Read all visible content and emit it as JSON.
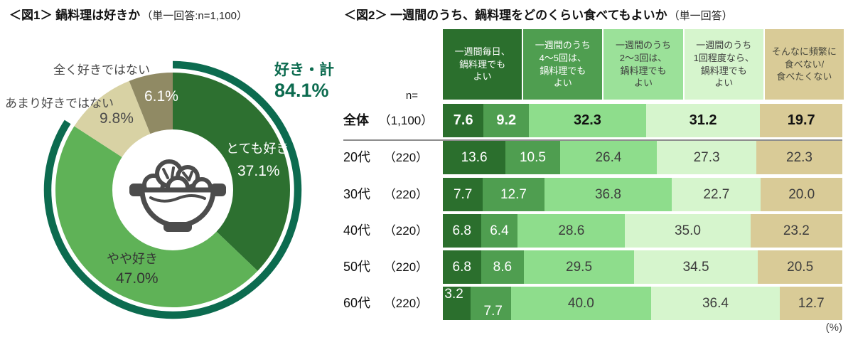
{
  "chart_data": [
    {
      "type": "pie",
      "variant": "donut-with-total-arc",
      "title": "＜図1＞ 鍋料理は好きか",
      "subtitle": "（単一回答:n=1,100）",
      "slices": [
        {
          "label": "とても好き",
          "value": 37.1,
          "display": "37.1%",
          "color": "#2d7030",
          "text_color": "#ffffff"
        },
        {
          "label": "やや好き",
          "value": 47.0,
          "display": "47.0%",
          "color": "#5fb257",
          "text_color": "#333333"
        },
        {
          "label": "あまり好きではない",
          "value": 9.8,
          "display": "9.8%",
          "color": "#d8d2a4",
          "text_color": "#4a4a4a"
        },
        {
          "label": "全く好きではない",
          "value": 6.1,
          "display": "6.1%",
          "color": "#908a64",
          "text_color": "#ffffff"
        }
      ],
      "total_arc": {
        "label": "好き・計",
        "value": 84.1,
        "display": "84.1%",
        "color": "#0c6b4f"
      },
      "center_icon": "hotpot-icon",
      "legend_position": "on-slices",
      "start_angle": "top-clockwise"
    },
    {
      "type": "bar",
      "variant": "stacked-horizontal-100pct",
      "title": "＜図2＞ 一週間のうち、鍋料理をどのくらい食べてもよいか",
      "subtitle": "（単一回答）",
      "n_header": "n=",
      "unit_label": "(%)",
      "xlim": [
        0,
        100
      ],
      "legend": [
        {
          "label": "一週間毎日、\n鍋料理でも\nよい",
          "color": "#2b6f2d",
          "text_color": "#ffffff",
          "bar_color": "#2b6f2d",
          "bar_text": "#ffffff"
        },
        {
          "label": "一週間のうち\n4～5回は、\n鍋料理でも\nよい",
          "color": "#4f9e50",
          "text_color": "#ffffff",
          "bar_color": "#4f9e50",
          "bar_text": "#ffffff"
        },
        {
          "label": "一週間のうち\n2～3回は、\n鍋料理でも\nよい",
          "color": "#9be199",
          "text_color": "#3d3d3d",
          "bar_color": "#8edd8c",
          "bar_text": "#3d3d3d"
        },
        {
          "label": "一週間のうち\n1回程度なら、\n鍋料理でも\nよい",
          "color": "#d6f5cd",
          "text_color": "#3d3d3d",
          "bar_color": "#d6f5cd",
          "bar_text": "#3d3d3d"
        },
        {
          "label": "そんなに頻繁に\n食べない/\n食べたくない",
          "color": "#d9cb97",
          "text_color": "#4a4a3e",
          "bar_color": "#d9cb97",
          "bar_text": "#3d3d3d"
        }
      ],
      "rows": [
        {
          "name": "全体",
          "n": "（1,100）",
          "values": [
            7.6,
            9.2,
            32.3,
            31.2,
            19.7
          ],
          "emphasis": true
        },
        {
          "name": "20代",
          "n": "（220）",
          "values": [
            13.6,
            10.5,
            26.4,
            27.3,
            22.3
          ]
        },
        {
          "name": "30代",
          "n": "（220）",
          "values": [
            7.7,
            12.7,
            36.8,
            22.7,
            20.0
          ]
        },
        {
          "name": "40代",
          "n": "（220）",
          "values": [
            6.8,
            6.4,
            28.6,
            35.0,
            23.2
          ]
        },
        {
          "name": "50代",
          "n": "（220）",
          "values": [
            6.8,
            8.6,
            29.5,
            34.5,
            20.5
          ]
        },
        {
          "name": "60代",
          "n": "（220）",
          "values": [
            3.2,
            7.7,
            40.0,
            36.4,
            12.7
          ],
          "stagger": true
        }
      ]
    }
  ]
}
